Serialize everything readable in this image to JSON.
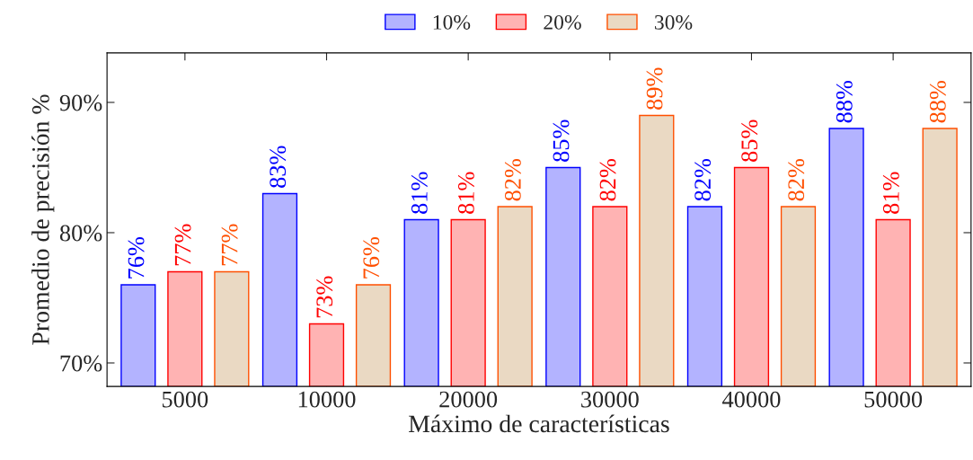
{
  "chart_data": {
    "type": "bar",
    "xlabel": "Máximo de características",
    "ylabel": "Promedio de precisión %",
    "categories": [
      "5000",
      "10000",
      "20000",
      "30000",
      "40000",
      "50000"
    ],
    "series": [
      {
        "name": "10%",
        "color": "#b3b3ff",
        "values": [
          76,
          83,
          81,
          85,
          82,
          88
        ],
        "value_labels": [
          "76%",
          "83%",
          "81%",
          "85%",
          "82%",
          "88%"
        ]
      },
      {
        "name": "20%",
        "color": "#ffb3b3",
        "values": [
          77,
          73,
          81,
          82,
          85,
          81
        ],
        "value_labels": [
          "77%",
          "73%",
          "81%",
          "82%",
          "85%",
          "81%"
        ]
      },
      {
        "name": "30%",
        "color": "#ead9c3",
        "values": [
          77,
          76,
          82,
          89,
          82,
          88
        ],
        "value_labels": [
          "77%",
          "76%",
          "82%",
          "89%",
          "82%",
          "88%"
        ]
      }
    ],
    "ylim": [
      68.2,
      93.8
    ],
    "yticks": [
      {
        "value": 70,
        "label": "70%"
      },
      {
        "value": 80,
        "label": "80%"
      },
      {
        "value": 90,
        "label": "90%"
      }
    ],
    "grid": false,
    "legend": "top"
  }
}
